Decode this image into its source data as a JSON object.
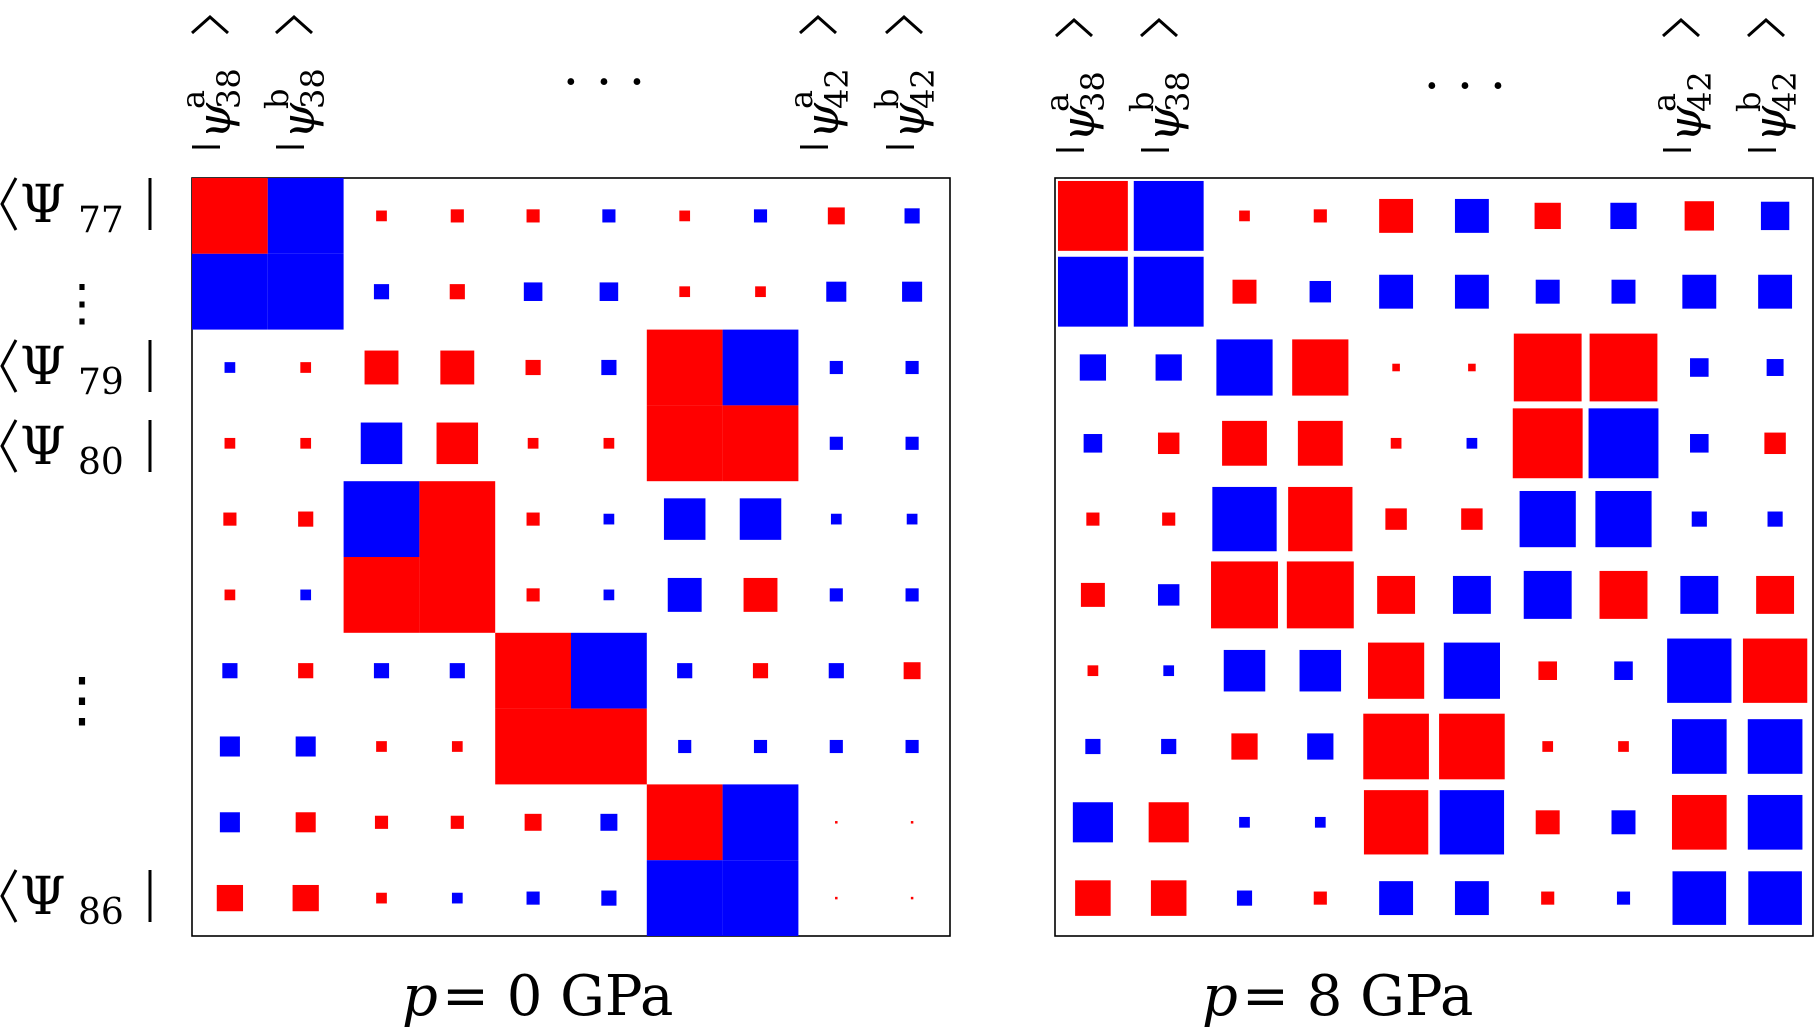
{
  "chart_data": {
    "type": "heatmap",
    "description_of_encoding": "Hinton-style matrix: square area proportional to |element|, red = positive sign, blue = negative sign",
    "colors": {
      "positive": "#ff0000",
      "negative": "#0000ff",
      "frame": "#000000"
    },
    "column_labels": {
      "first": [
        "ψ",
        "38",
        "a"
      ],
      "second": [
        "ψ",
        "38",
        "b"
      ],
      "ellipsis": "· · ·",
      "second_last": [
        "ψ",
        "42",
        "a"
      ],
      "last": [
        "ψ",
        "42",
        "b"
      ]
    },
    "row_labels": {
      "r77": [
        "Ψ",
        "77"
      ],
      "r79": [
        "Ψ",
        "79"
      ],
      "r80": [
        "Ψ",
        "80"
      ],
      "r86": [
        "Ψ",
        "86"
      ],
      "vdots": "⋮"
    },
    "panels": [
      {
        "title_var": "p",
        "title_value": "= 0 GPa",
        "matrix": [
          [
            1.0,
            -1.0,
            0.02,
            0.03,
            0.03,
            -0.03,
            0.02,
            -0.03,
            0.05,
            -0.04
          ],
          [
            -1.0,
            -1.0,
            -0.04,
            0.04,
            -0.06,
            -0.06,
            0.02,
            0.02,
            -0.07,
            -0.07
          ],
          [
            -0.02,
            0.02,
            0.2,
            0.2,
            0.04,
            -0.04,
            1.0,
            -1.0,
            -0.03,
            -0.03
          ],
          [
            0.02,
            0.02,
            -0.3,
            0.3,
            0.02,
            0.02,
            1.0,
            1.0,
            -0.03,
            -0.03
          ],
          [
            0.03,
            0.04,
            -1.0,
            1.0,
            0.03,
            -0.02,
            -0.3,
            -0.3,
            -0.02,
            -0.02
          ],
          [
            0.02,
            -0.02,
            1.0,
            1.0,
            0.03,
            -0.02,
            -0.2,
            0.2,
            -0.03,
            -0.03
          ],
          [
            -0.04,
            0.04,
            -0.04,
            -0.04,
            1.0,
            -1.0,
            -0.04,
            0.04,
            -0.04,
            0.05
          ],
          [
            -0.07,
            -0.07,
            0.02,
            0.02,
            1.0,
            1.0,
            -0.03,
            -0.03,
            -0.03,
            -0.03
          ],
          [
            -0.07,
            0.07,
            0.03,
            0.03,
            0.05,
            -0.05,
            1.0,
            -1.0,
            0.0,
            0.0
          ],
          [
            0.12,
            0.12,
            0.02,
            -0.02,
            -0.03,
            -0.04,
            -1.0,
            -1.0,
            0.0,
            0.0
          ]
        ]
      },
      {
        "title_var": "p",
        "title_value": "= 8 GPa",
        "matrix": [
          [
            0.85,
            -0.85,
            0.02,
            0.03,
            0.2,
            -0.2,
            0.12,
            -0.12,
            0.15,
            -0.14
          ],
          [
            -0.85,
            -0.85,
            0.1,
            -0.08,
            -0.2,
            -0.2,
            -0.1,
            -0.1,
            -0.2,
            -0.2
          ],
          [
            -0.12,
            -0.12,
            -0.55,
            0.55,
            0.01,
            0.01,
            0.8,
            0.8,
            -0.06,
            -0.05
          ],
          [
            -0.06,
            0.08,
            0.35,
            0.35,
            0.02,
            -0.02,
            0.85,
            -0.85,
            -0.06,
            0.08
          ],
          [
            0.03,
            0.03,
            -0.72,
            0.72,
            0.08,
            0.08,
            -0.55,
            -0.55,
            -0.04,
            -0.04
          ],
          [
            0.1,
            -0.08,
            0.78,
            0.78,
            0.25,
            -0.25,
            -0.4,
            0.4,
            -0.25,
            0.25
          ],
          [
            0.02,
            -0.02,
            -0.3,
            -0.3,
            0.55,
            -0.55,
            0.06,
            -0.06,
            -0.72,
            0.72
          ],
          [
            -0.04,
            -0.04,
            0.12,
            -0.12,
            0.75,
            0.75,
            0.02,
            0.02,
            -0.52,
            -0.52
          ],
          [
            -0.28,
            0.28,
            -0.02,
            -0.02,
            0.72,
            -0.72,
            0.1,
            -0.1,
            0.52,
            -0.52
          ],
          [
            0.22,
            0.22,
            -0.04,
            0.03,
            -0.2,
            -0.2,
            0.03,
            -0.03,
            -0.5,
            -0.5
          ]
        ]
      }
    ]
  }
}
